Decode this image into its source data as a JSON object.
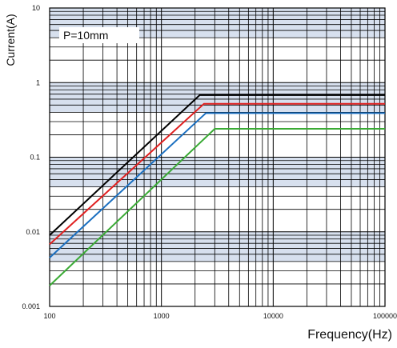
{
  "chart_data": {
    "type": "line",
    "xlabel": "Frequency(Hz)",
    "ylabel": "Current(A)",
    "x_scale": "log",
    "y_scale": "log",
    "xlim": [
      100,
      100000
    ],
    "ylim": [
      0.001,
      10
    ],
    "x_ticks": [
      "100",
      "1000",
      "10000",
      "100000"
    ],
    "y_ticks": [
      "10",
      "1",
      "0.1",
      "0.01",
      "0.001"
    ],
    "grid": true,
    "annotation": "P=10mm",
    "series": [
      {
        "color": "#000000",
        "x": [
          100,
          2200,
          100000
        ],
        "y": [
          0.009,
          0.68,
          0.68
        ]
      },
      {
        "color": "#e02020",
        "x": [
          100,
          2400,
          100000
        ],
        "y": [
          0.0068,
          0.52,
          0.52
        ]
      },
      {
        "color": "#1a6fc0",
        "x": [
          100,
          2500,
          100000
        ],
        "y": [
          0.0045,
          0.39,
          0.39
        ]
      },
      {
        "color": "#3aaa35",
        "x": [
          100,
          3000,
          100000
        ],
        "y": [
          0.0019,
          0.24,
          0.24
        ]
      }
    ],
    "band_color": "#c9d6e8",
    "grid_color": "#000000"
  }
}
